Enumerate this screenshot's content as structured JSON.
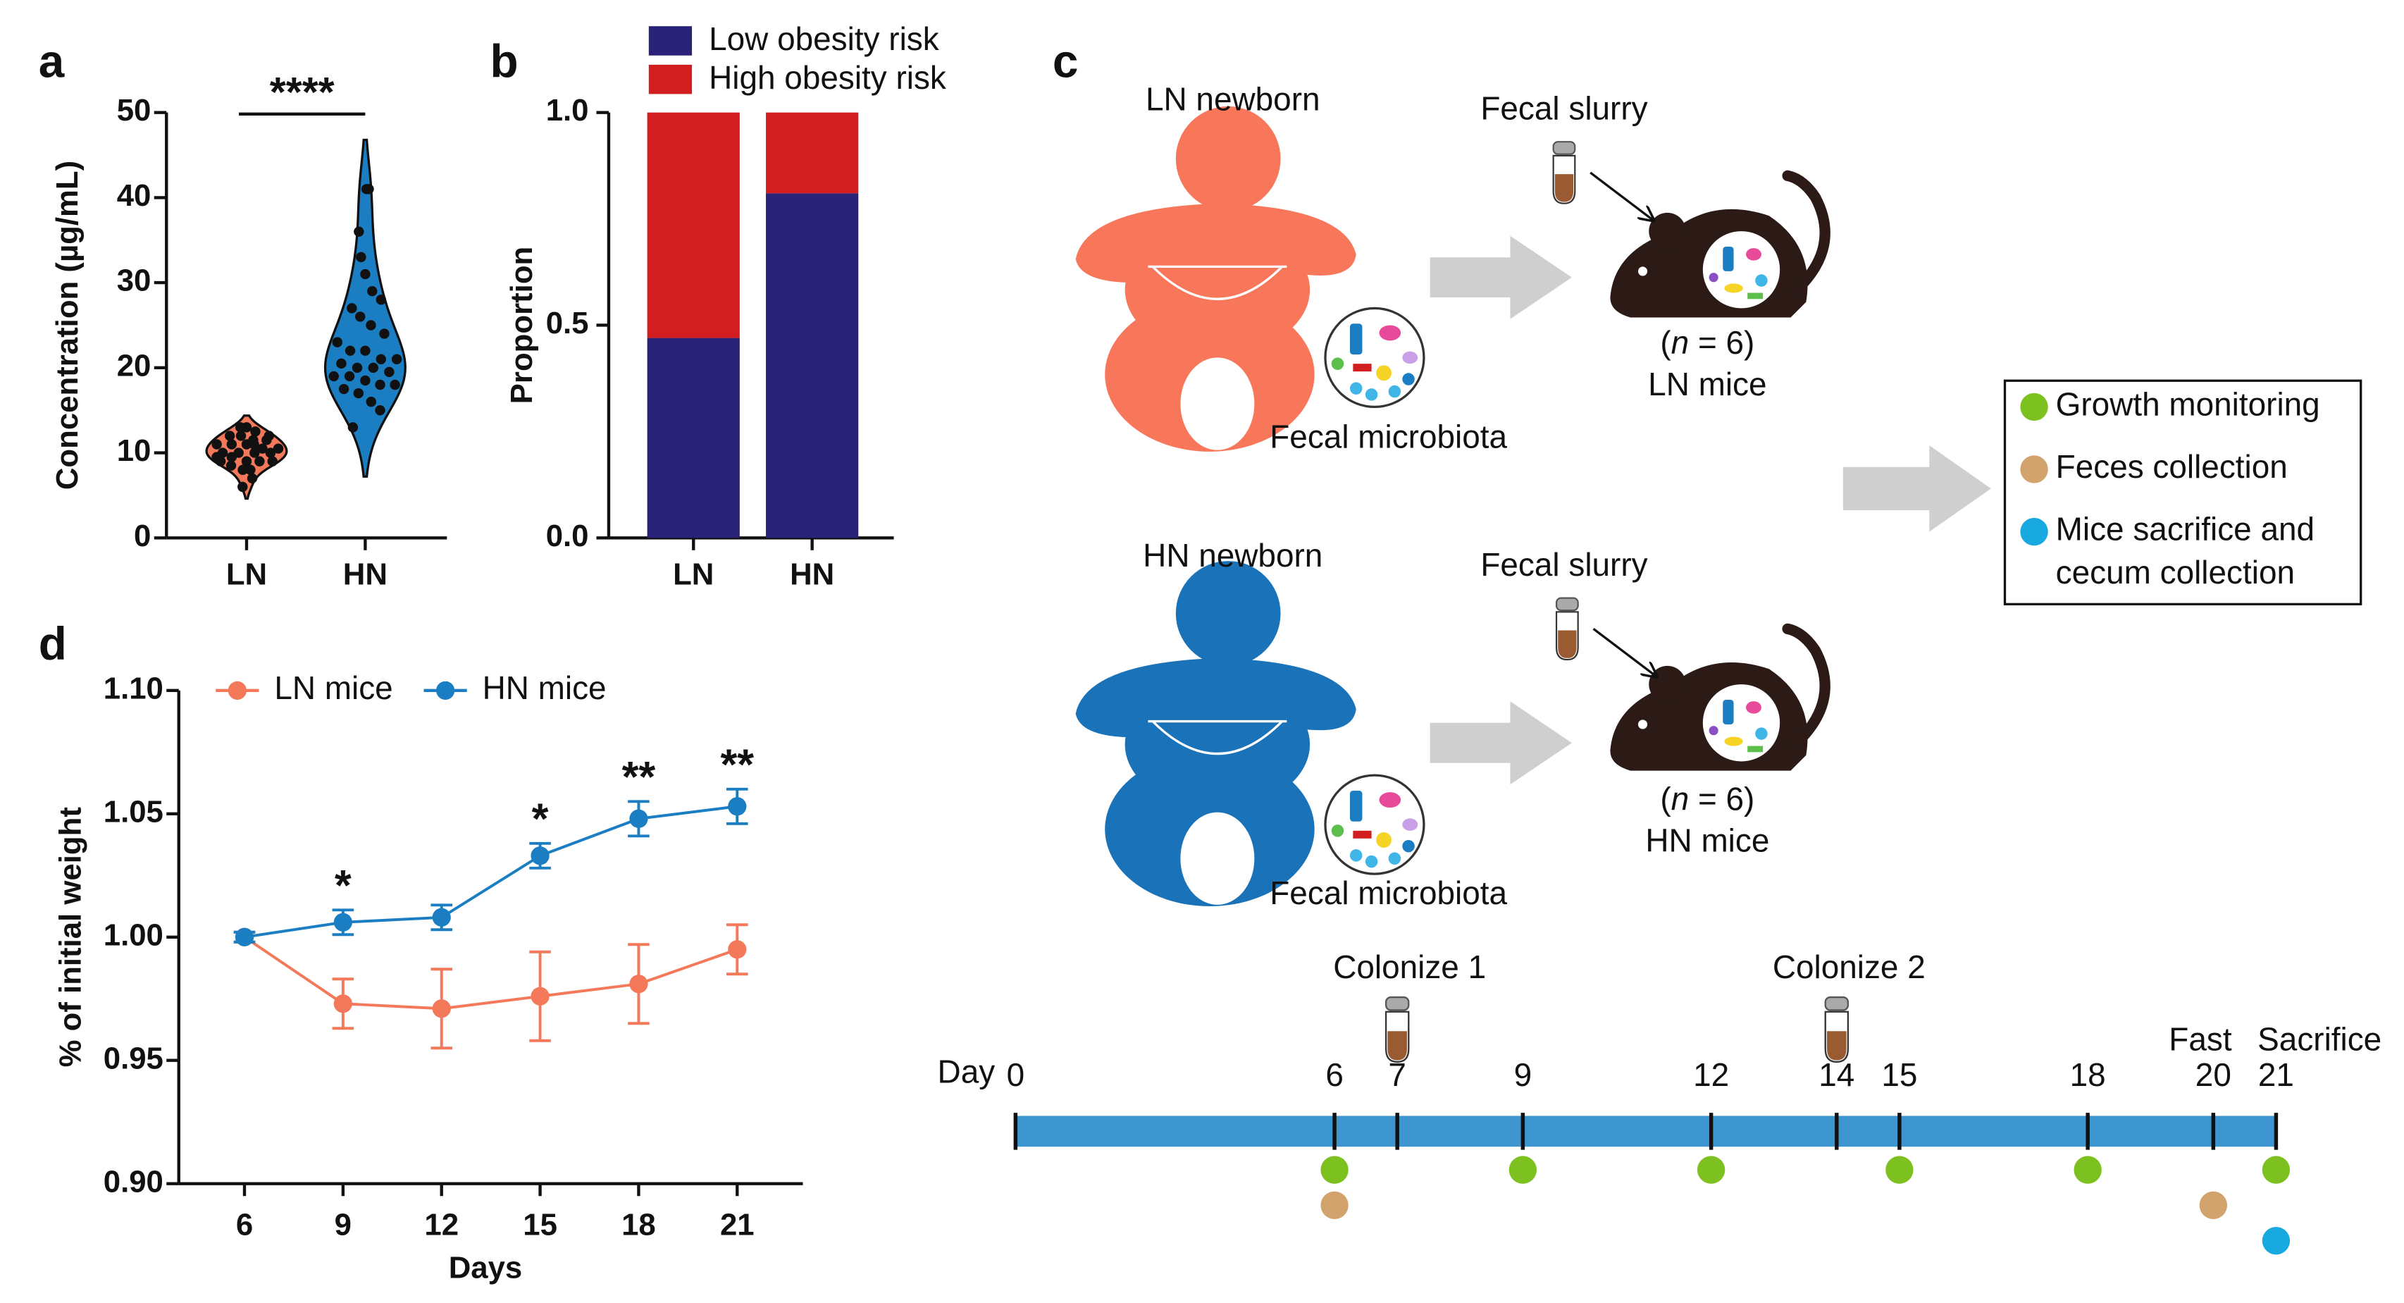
{
  "chart_data": [
    {
      "label": "a",
      "type": "violin",
      "categories": [
        "LN",
        "HN"
      ],
      "colors": [
        "#f4795b",
        "#1b7ec2"
      ],
      "values": [
        [
          6,
          7,
          8,
          8,
          8.5,
          9,
          9,
          9,
          9.5,
          9.5,
          10,
          10,
          10,
          10,
          10.5,
          10.5,
          11,
          11,
          11,
          11.5,
          11.5,
          12,
          12,
          12,
          12.5,
          13,
          13,
          9,
          10,
          11
        ],
        [
          13,
          15,
          16,
          17,
          17.5,
          18,
          18,
          18.5,
          19,
          19,
          19.5,
          20,
          20,
          20.5,
          21,
          21,
          22,
          22,
          23,
          24,
          25,
          26,
          27,
          28,
          29,
          31,
          33,
          36,
          41,
          41
        ]
      ],
      "ylabel": "Concentration (µg/mL)",
      "ylim": [
        0,
        50
      ],
      "yticks": [
        0,
        10,
        20,
        30,
        40,
        50
      ],
      "annotation": "****"
    },
    {
      "label": "b",
      "type": "bar",
      "stacked": true,
      "categories": [
        "LN",
        "HN"
      ],
      "series": [
        {
          "name": "Low obesity risk",
          "color": "#2a2178",
          "values": [
            0.47,
            0.81
          ]
        },
        {
          "name": "High obesity risk",
          "color": "#d21e1e",
          "values": [
            0.53,
            0.19
          ]
        }
      ],
      "ylabel": "Proportion",
      "ylim": [
        0,
        1
      ],
      "yticks": [
        {
          "value": 0,
          "label": "0.0"
        },
        {
          "value": 0.5,
          "label": "0.5"
        },
        {
          "value": 1,
          "label": "1.0"
        }
      ],
      "legend": "top"
    },
    {
      "label": "d",
      "type": "line",
      "x": [
        6,
        9,
        12,
        15,
        18,
        21
      ],
      "series": [
        {
          "name": "LN mice",
          "color": "#f4795b",
          "values": [
            1.0,
            0.973,
            0.971,
            0.976,
            0.981,
            0.995
          ],
          "errors": [
            0.002,
            0.01,
            0.016,
            0.018,
            0.016,
            0.01
          ]
        },
        {
          "name": "HN mice",
          "color": "#1b7ec2",
          "values": [
            1.0,
            1.006,
            1.008,
            1.033,
            1.048,
            1.053
          ],
          "errors": [
            0.002,
            0.005,
            0.005,
            0.005,
            0.007,
            0.007
          ]
        }
      ],
      "xlabel": "Days",
      "ylabel": "% of initial weight",
      "xlim": [
        4,
        23
      ],
      "xticks": [
        6,
        9,
        12,
        15,
        18,
        21
      ],
      "ylim": [
        0.9,
        1.1
      ],
      "yticks": [
        {
          "value": 0.9,
          "label": "0.90"
        },
        {
          "value": 0.95,
          "label": "0.95"
        },
        {
          "value": 1,
          "label": "1.00"
        },
        {
          "value": 1.05,
          "label": "1.05"
        },
        {
          "value": 1.1,
          "label": "1.10"
        }
      ],
      "annotations": [
        {
          "x": 9,
          "text": "*"
        },
        {
          "x": 15,
          "text": "*"
        },
        {
          "x": 18,
          "text": "**"
        },
        {
          "x": 21,
          "text": "**"
        }
      ],
      "legend": "top"
    }
  ],
  "diagram": {
    "label": "c",
    "groups": [
      {
        "newborn": "LN newborn",
        "slurry": "Fecal slurry",
        "n": [
          "(",
          "n",
          " = 6)"
        ],
        "mice": "LN mice",
        "microbiota": "Fecal microbiota"
      },
      {
        "newborn": "HN newborn",
        "slurry": "Fecal slurry",
        "n": [
          "(",
          "n",
          " = 6)"
        ],
        "mice": "HN mice",
        "microbiota": "Fecal microbiota"
      }
    ],
    "timeline": {
      "label": "Day",
      "days": [
        0,
        6,
        7,
        9,
        12,
        14,
        15,
        18,
        20,
        21
      ],
      "events": [
        {
          "day": 7,
          "label": "Colonize 1"
        },
        {
          "day": 14,
          "label": "Colonize 2"
        },
        {
          "day": 20,
          "label": "Fast"
        },
        {
          "day": 21,
          "label": "Sacrifice"
        }
      ],
      "activities": [
        {
          "name": "Growth monitoring",
          "color": "#7cc11f",
          "days": [
            6,
            9,
            12,
            15,
            18,
            21
          ]
        },
        {
          "name": "Feces collection",
          "color": "#d3a36d",
          "days": [
            6,
            20
          ]
        },
        {
          "name": [
            "Mice sacrifice and",
            "cecum collection"
          ],
          "color": "#19a9e1",
          "days": [
            21
          ]
        }
      ]
    }
  }
}
